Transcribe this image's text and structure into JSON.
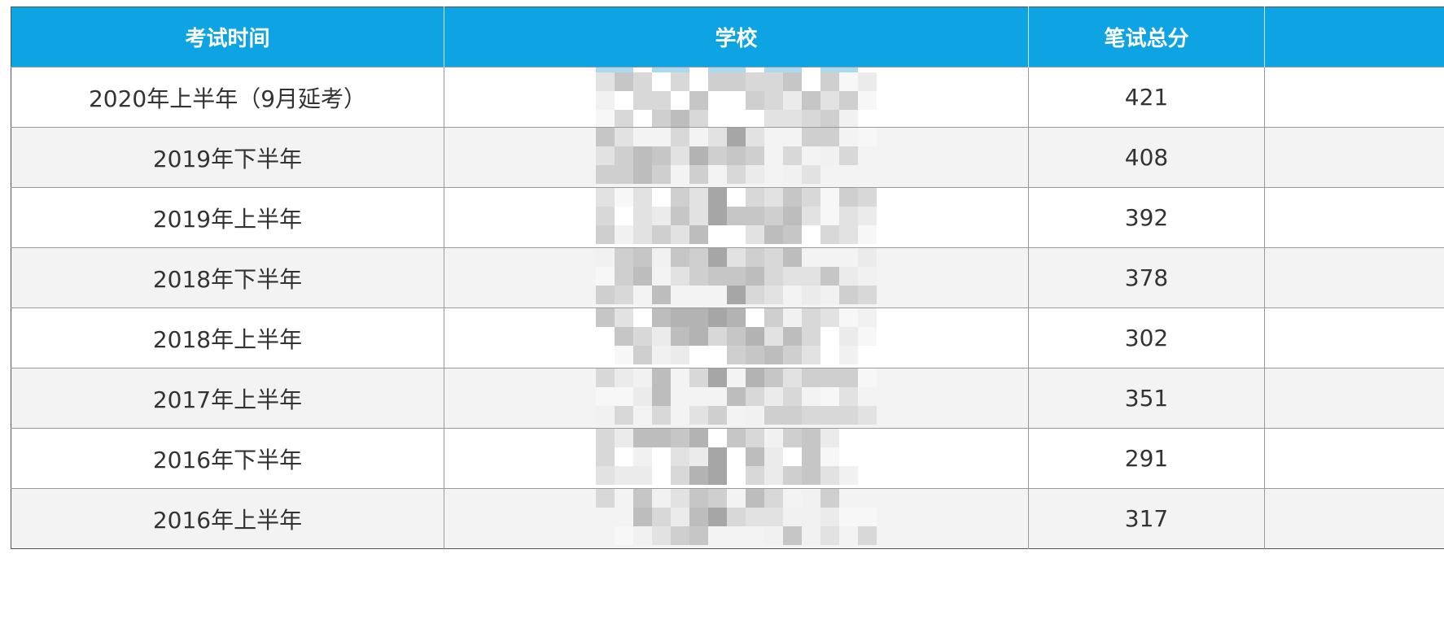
{
  "table": {
    "headers": {
      "time": "考试时间",
      "school": "学校",
      "score": "笔试总分",
      "extra": ""
    },
    "rows": [
      {
        "time": "2020年上半年（9月延考）",
        "school": "",
        "score": "421"
      },
      {
        "time": "2019年下半年",
        "school": "",
        "score": "408"
      },
      {
        "time": "2019年上半年",
        "school": "",
        "score": "392"
      },
      {
        "time": "2018年下半年",
        "school": "",
        "score": "378"
      },
      {
        "time": "2018年上半年",
        "school": "",
        "score": "302"
      },
      {
        "time": "2017年上半年",
        "school": "",
        "score": "351"
      },
      {
        "time": "2016年下半年",
        "school": "",
        "score": "291"
      },
      {
        "time": "2016年上半年",
        "school": "",
        "score": "317"
      }
    ]
  },
  "colors": {
    "header_bg": "#0ea3e2",
    "header_text": "#ffffff",
    "row_alt_bg": "#f3f3f3",
    "text": "#333333"
  }
}
